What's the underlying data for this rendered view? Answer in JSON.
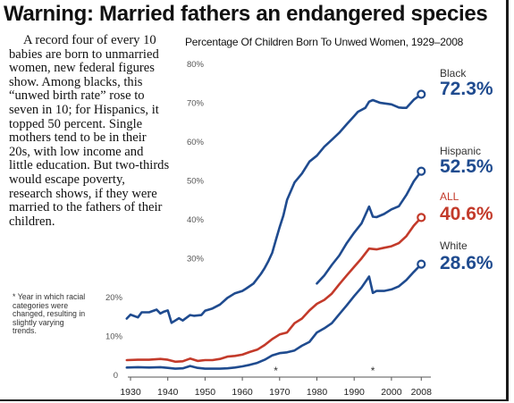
{
  "page": {
    "headline": "Warning: Married fathers an endangered species",
    "body": "A record four of every 10 babies are born to unmarried women, new federal figures show. Among blacks, this “unwed birth rate” rose to seven in 10; for Hispanics, it topped 50 percent. Single mothers tend to be in their 20s, with low income and little education. But two-thirds would escape poverty, research shows, if they were married to the fathers of their children.",
    "footnote": "* Year in which racial categories were changed, resulting in slightly varying trends."
  },
  "chart_data": {
    "type": "line",
    "title": "Percentage Of Children Born To Unwed Women, 1929–2008",
    "xlabel": "",
    "ylabel": "",
    "xlim": [
      1929,
      2009
    ],
    "ylim": [
      0,
      80
    ],
    "y_ticks": [
      "0",
      "10%",
      "20%",
      "30%",
      "40%",
      "50%",
      "60%",
      "70%",
      "80%"
    ],
    "x_ticks": [
      "1930",
      "1940",
      "1950",
      "1960",
      "1970",
      "1980",
      "1990",
      "2000",
      "2008"
    ],
    "markers": [
      {
        "label": "*",
        "year": 1969
      },
      {
        "label": "*",
        "year": 1995
      }
    ],
    "colors": {
      "Black": "#1f4b8f",
      "Hispanic": "#1f4b8f",
      "ALL": "#c33a2a",
      "White": "#1f4b8f"
    },
    "series": [
      {
        "name": "Black",
        "end_label": "72.3%",
        "x": [
          1929,
          1930,
          1932,
          1933,
          1935,
          1937,
          1938,
          1939,
          1940,
          1941,
          1943,
          1944,
          1946,
          1947,
          1949,
          1950,
          1952,
          1954,
          1956,
          1958,
          1960,
          1961,
          1963,
          1965,
          1966,
          1967,
          1968,
          1969,
          1970,
          1971,
          1972,
          1974,
          1976,
          1978,
          1980,
          1982,
          1984,
          1986,
          1988,
          1990,
          1991,
          1993,
          1994,
          1995,
          1997,
          2000,
          2002,
          2003,
          2004,
          2006,
          2008
        ],
        "y": [
          14.6,
          15.6,
          14.9,
          16.2,
          16.2,
          16.9,
          15.9,
          16.4,
          16.7,
          13.5,
          14.7,
          14.1,
          15.5,
          15.3,
          15.5,
          16.6,
          17.2,
          18.2,
          19.9,
          21.1,
          21.7,
          22.3,
          23.6,
          26.1,
          27.6,
          29.4,
          31.5,
          34.8,
          38.1,
          41.1,
          45.1,
          49.6,
          51.9,
          55.0,
          56.5,
          58.8,
          60.6,
          62.4,
          64.6,
          66.7,
          67.8,
          68.8,
          70.4,
          70.8,
          70.1,
          69.7,
          68.9,
          68.8,
          68.8,
          70.9,
          72.3
        ]
      },
      {
        "name": "Hispanic",
        "end_label": "52.5%",
        "x": [
          1980,
          1982,
          1984,
          1986,
          1988,
          1990,
          1992,
          1994,
          1995,
          1996,
          1998,
          2000,
          2002,
          2004,
          2006,
          2008
        ],
        "y": [
          23.6,
          25.7,
          28.4,
          30.8,
          34.0,
          36.7,
          39.1,
          43.4,
          40.8,
          40.7,
          41.5,
          42.7,
          43.5,
          46.4,
          49.9,
          52.5
        ]
      },
      {
        "name": "ALL",
        "end_label": "40.6%",
        "x": [
          1929,
          1932,
          1935,
          1938,
          1940,
          1942,
          1944,
          1946,
          1948,
          1950,
          1952,
          1954,
          1956,
          1958,
          1960,
          1962,
          1964,
          1966,
          1968,
          1970,
          1972,
          1974,
          1976,
          1978,
          1980,
          1982,
          1984,
          1986,
          1988,
          1990,
          1992,
          1994,
          1996,
          1998,
          2000,
          2002,
          2004,
          2006,
          2008
        ],
        "y": [
          3.9,
          4.0,
          4.0,
          4.2,
          4.0,
          3.5,
          3.6,
          4.3,
          3.7,
          3.9,
          3.9,
          4.2,
          4.8,
          5.0,
          5.3,
          6.0,
          6.6,
          7.8,
          9.3,
          10.5,
          11.0,
          13.4,
          14.6,
          16.7,
          18.4,
          19.4,
          21.0,
          23.4,
          25.7,
          27.9,
          30.1,
          32.6,
          32.4,
          32.8,
          33.2,
          34.0,
          35.8,
          38.5,
          40.6
        ]
      },
      {
        "name": "White",
        "end_label": "28.6%",
        "x": [
          1929,
          1932,
          1935,
          1938,
          1940,
          1942,
          1944,
          1946,
          1948,
          1950,
          1952,
          1954,
          1956,
          1958,
          1960,
          1962,
          1964,
          1966,
          1968,
          1970,
          1972,
          1974,
          1976,
          1978,
          1980,
          1982,
          1984,
          1986,
          1988,
          1990,
          1992,
          1994,
          1995,
          1996,
          1998,
          2000,
          2002,
          2004,
          2006,
          2008
        ],
        "y": [
          2.0,
          2.1,
          2.0,
          2.1,
          1.9,
          1.7,
          1.8,
          2.4,
          1.9,
          1.7,
          1.7,
          1.7,
          1.8,
          2.0,
          2.3,
          2.7,
          3.2,
          4.0,
          5.1,
          5.7,
          5.9,
          6.4,
          7.6,
          8.6,
          11.0,
          12.1,
          13.4,
          15.7,
          18.0,
          20.4,
          22.6,
          25.4,
          21.2,
          21.7,
          21.7,
          22.1,
          22.9,
          24.5,
          26.6,
          28.6
        ]
      }
    ]
  }
}
